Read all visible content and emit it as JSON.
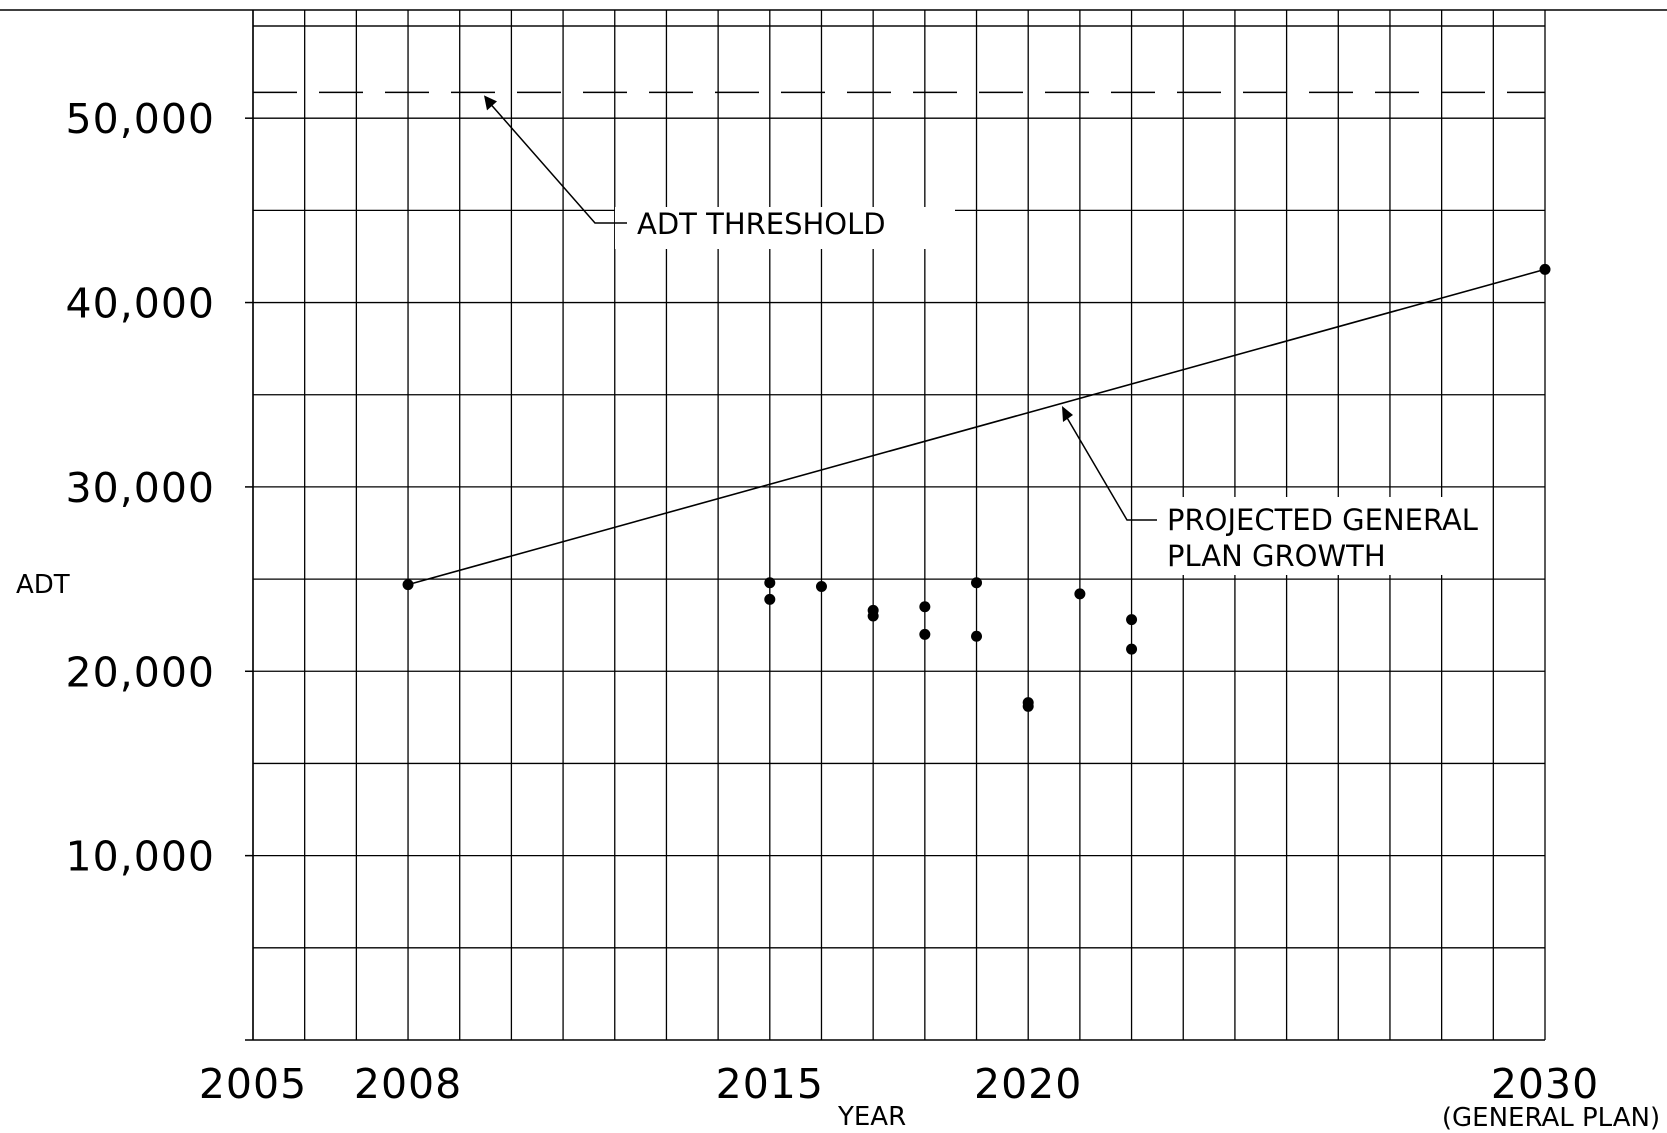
{
  "chart_data": {
    "type": "scatter",
    "title": "",
    "xlabel": "YEAR",
    "ylabel": "ADT",
    "xlim": [
      2005,
      2030
    ],
    "ylim": [
      0,
      55000
    ],
    "x_minor_step": 1,
    "y_minor_step": 5000,
    "grid": true,
    "yticks": [
      {
        "value": 10000,
        "label": "10,000"
      },
      {
        "value": 20000,
        "label": "20,000"
      },
      {
        "value": 30000,
        "label": "30,000"
      },
      {
        "value": 40000,
        "label": "40,000"
      },
      {
        "value": 50000,
        "label": "50,000"
      }
    ],
    "xticks": [
      {
        "value": 2005,
        "label": "2005"
      },
      {
        "value": 2008,
        "label": "2008"
      },
      {
        "value": 2015,
        "label": "2015"
      },
      {
        "value": 2020,
        "label": "2020"
      },
      {
        "value": 2030,
        "label": "2030"
      }
    ],
    "xtick_note": {
      "value": 2030,
      "text": "(GENERAL PLAN)"
    },
    "threshold": {
      "y": 51400,
      "label": "ADT THRESHOLD"
    },
    "projection": {
      "label_lines": [
        "PROJECTED GENERAL",
        "PLAN GROWTH"
      ],
      "points": [
        {
          "x": 2008,
          "y": 24700
        },
        {
          "x": 2030,
          "y": 41800
        }
      ]
    },
    "observed": [
      {
        "x": 2015,
        "y": 24800
      },
      {
        "x": 2015,
        "y": 23900
      },
      {
        "x": 2016,
        "y": 24600
      },
      {
        "x": 2017,
        "y": 23300
      },
      {
        "x": 2017,
        "y": 23000
      },
      {
        "x": 2018,
        "y": 23500
      },
      {
        "x": 2018,
        "y": 22000
      },
      {
        "x": 2019,
        "y": 24800
      },
      {
        "x": 2019,
        "y": 21900
      },
      {
        "x": 2020,
        "y": 18300
      },
      {
        "x": 2020,
        "y": 18100
      },
      {
        "x": 2021,
        "y": 24200
      },
      {
        "x": 2022,
        "y": 22800
      },
      {
        "x": 2022,
        "y": 21200
      }
    ]
  }
}
